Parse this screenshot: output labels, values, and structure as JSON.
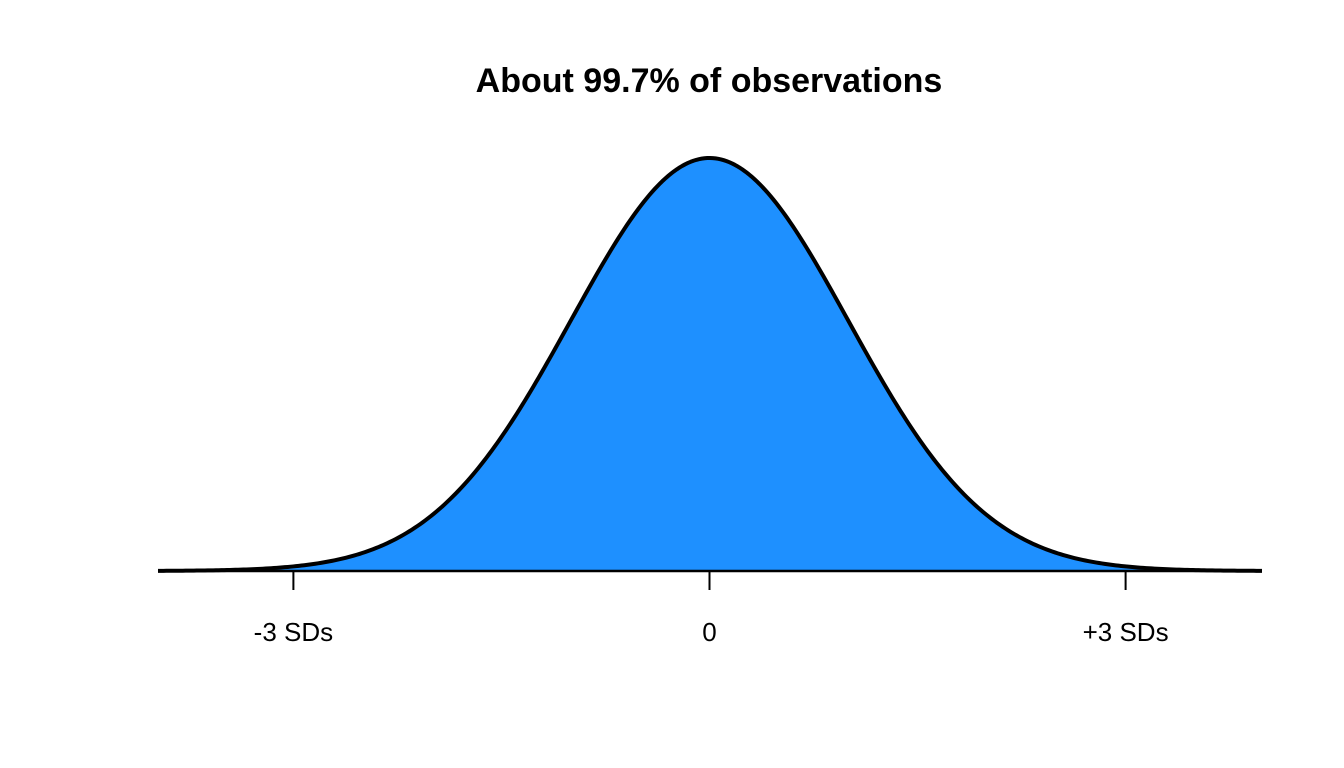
{
  "chart_data": {
    "type": "area",
    "title": "About 99.7% of observations",
    "xlabel": "",
    "ylabel": "",
    "distribution": "normal",
    "mean": 0,
    "sd": 1,
    "xlim": [
      -3.3,
      4.0
    ],
    "shaded_range": [
      -4.0,
      4.0
    ],
    "ticks": [
      {
        "value": -3,
        "label": "-3 SDs"
      },
      {
        "value": 0,
        "label": "0"
      },
      {
        "value": 3,
        "label": "+3 SDs"
      }
    ],
    "grid": false,
    "legend": "none",
    "colors": {
      "fill": "#1E90FF",
      "curve": "#000000",
      "axis": "#000000"
    }
  }
}
